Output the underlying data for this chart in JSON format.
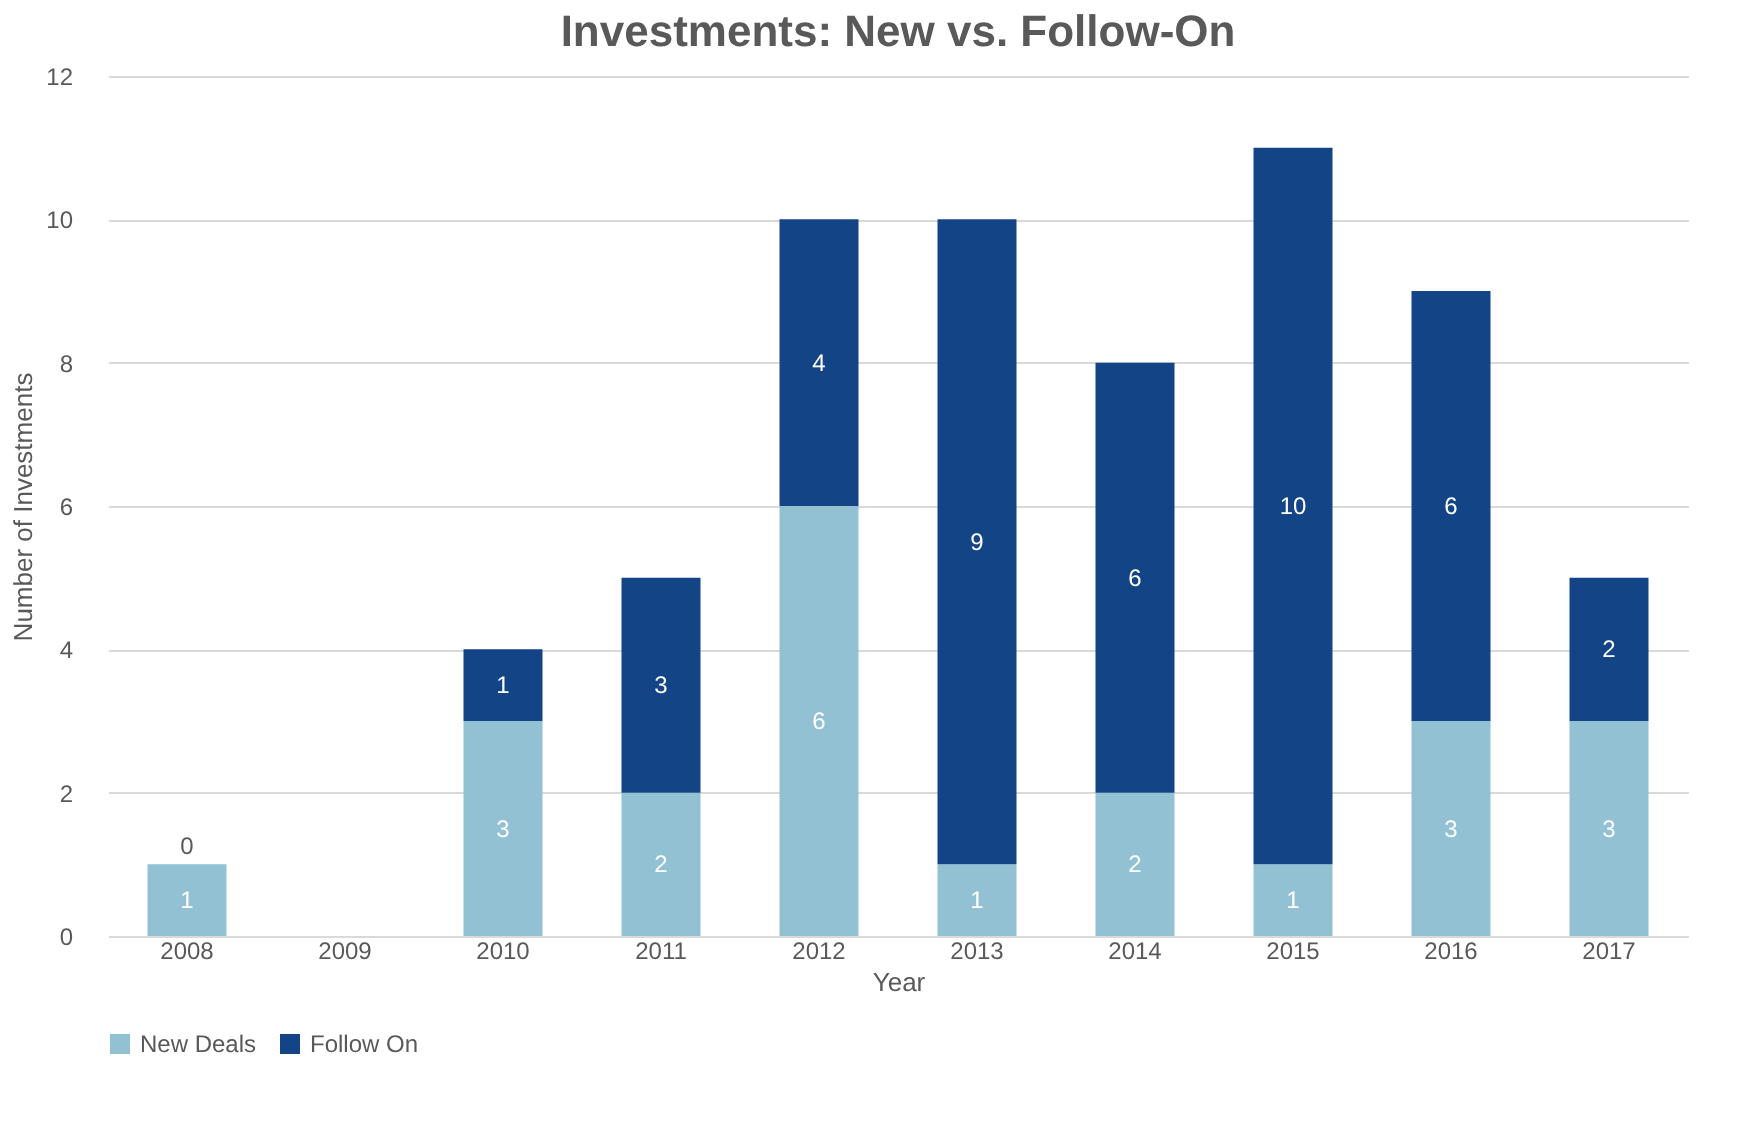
{
  "chart_data": {
    "type": "bar",
    "title": "Investments: New vs. Follow-On",
    "xlabel": "Year",
    "ylabel": "Number of Investments",
    "categories": [
      "2008",
      "2009",
      "2010",
      "2011",
      "2012",
      "2013",
      "2014",
      "2015",
      "2016",
      "2017"
    ],
    "series": [
      {
        "name": "New Deals",
        "color": "#92c1d4",
        "values": [
          1,
          0,
          3,
          2,
          6,
          1,
          2,
          1,
          3,
          3
        ],
        "value_labels": [
          "1",
          null,
          "3",
          "2",
          "6",
          "1",
          "2",
          "1",
          "3",
          "3"
        ]
      },
      {
        "name": "Follow On",
        "color": "#134586",
        "values": [
          0,
          0,
          1,
          3,
          4,
          9,
          6,
          10,
          6,
          2
        ],
        "value_labels": [
          "0",
          null,
          "1",
          "3",
          "4",
          "9",
          "6",
          "10",
          "6",
          "2"
        ]
      }
    ],
    "stacked": true,
    "ylim": [
      0,
      12
    ],
    "yticks": [
      0,
      2,
      4,
      6,
      8,
      10,
      12
    ],
    "grid": "y",
    "legend": "bottom"
  }
}
